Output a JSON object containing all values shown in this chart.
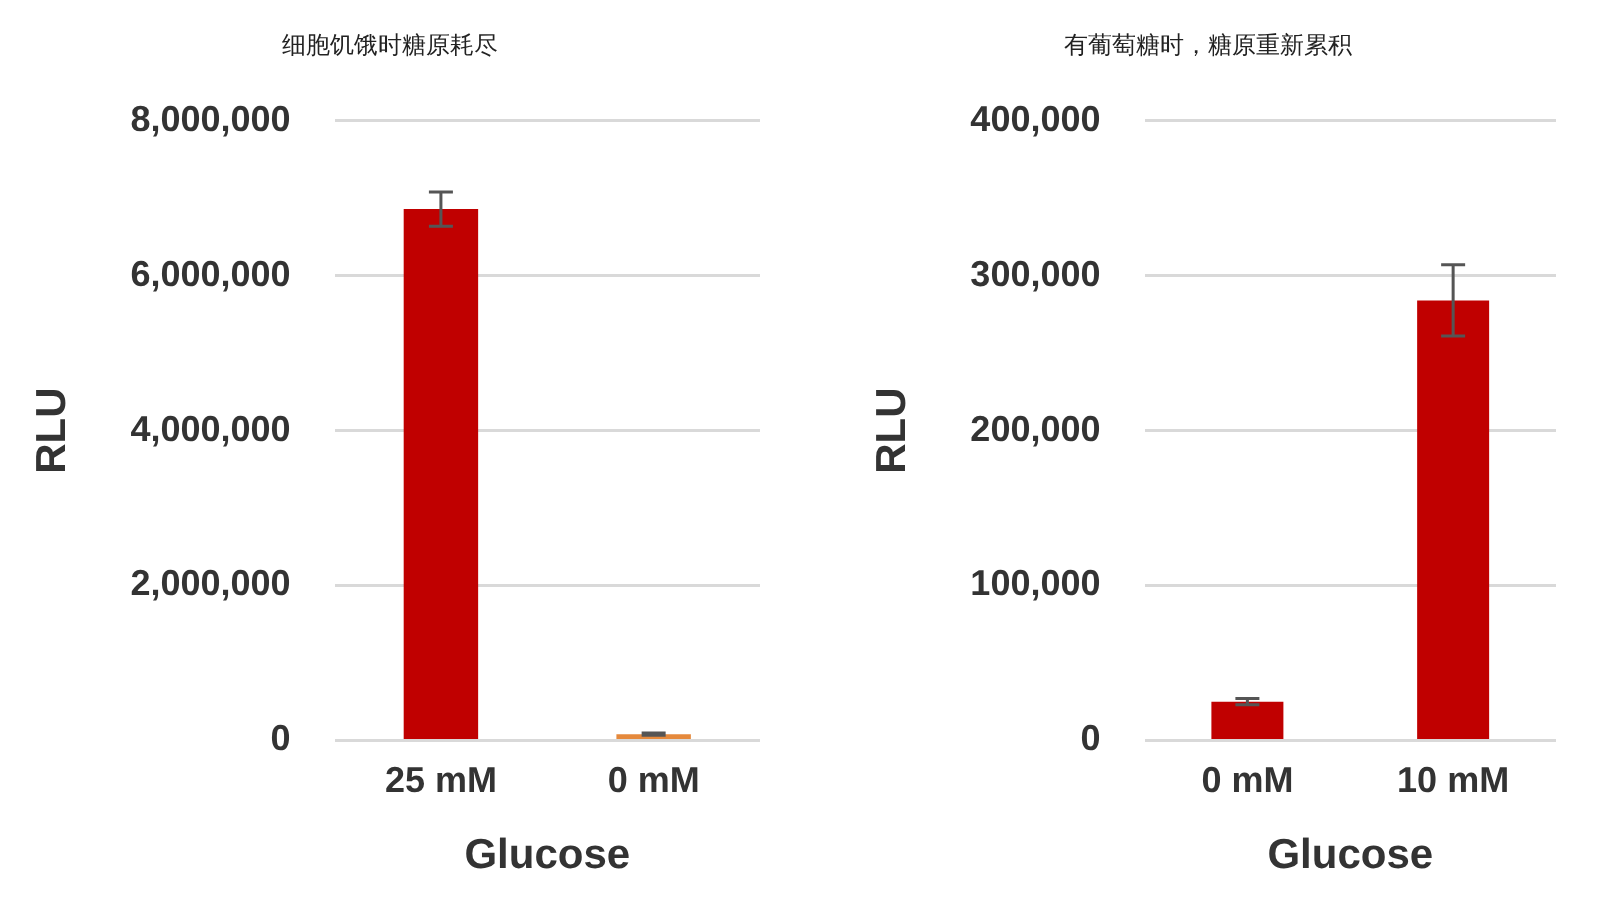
{
  "chart_data": [
    {
      "type": "bar",
      "title": "细胞饥饿时糖原耗尽",
      "xlabel": "Glucose",
      "ylabel": "RLU",
      "categories": [
        "25 mM",
        "0 mM"
      ],
      "values": [
        6860000,
        80000
      ],
      "errors": [
        220000,
        15000
      ],
      "colors": [
        "#c00000",
        "#e5893c"
      ],
      "ylim": [
        0,
        8000000
      ],
      "yticks": [
        {
          "value": 0,
          "label": "0"
        },
        {
          "value": 2000000,
          "label": "2,000,000"
        },
        {
          "value": 4000000,
          "label": "4,000,000"
        },
        {
          "value": 6000000,
          "label": "6,000,000"
        },
        {
          "value": 8000000,
          "label": "8,000,000"
        }
      ],
      "grid": "y",
      "legend": false
    },
    {
      "type": "bar",
      "title": "有葡萄糖时，糖原重新累积",
      "xlabel": "Glucose",
      "ylabel": "RLU",
      "categories": [
        "0 mM",
        "10 mM"
      ],
      "values": [
        25000,
        284000
      ],
      "errors": [
        2000,
        23000
      ],
      "colors": [
        "#c00000",
        "#c00000"
      ],
      "ylim": [
        0,
        400000
      ],
      "yticks": [
        {
          "value": 0,
          "label": "0"
        },
        {
          "value": 100000,
          "label": "100,000"
        },
        {
          "value": 200000,
          "label": "200,000"
        },
        {
          "value": 300000,
          "label": "300,000"
        },
        {
          "value": 400000,
          "label": "400,000"
        }
      ],
      "grid": "y",
      "legend": false
    }
  ]
}
